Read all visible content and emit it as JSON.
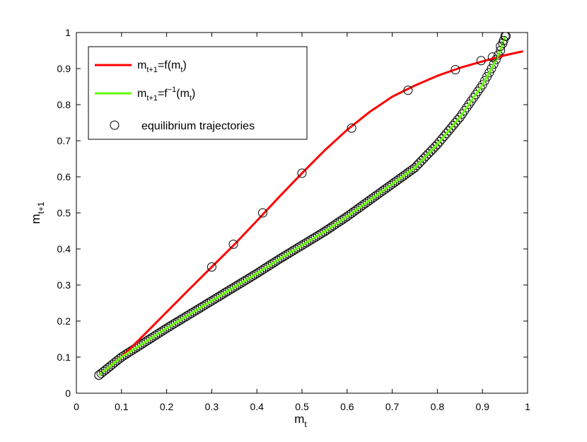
{
  "chart_data": {
    "type": "line",
    "title": "",
    "xlabel": {
      "base": "m",
      "sub": "t"
    },
    "ylabel": {
      "base": "m",
      "sub": "t+1"
    },
    "xlim": [
      0,
      1
    ],
    "ylim": [
      0,
      1
    ],
    "xticks": [
      0,
      0.1,
      0.2,
      0.3,
      0.4,
      0.5,
      0.6,
      0.7,
      0.8,
      0.9,
      1
    ],
    "yticks": [
      0,
      0.1,
      0.2,
      0.3,
      0.4,
      0.5,
      0.6,
      0.7,
      0.8,
      0.9,
      1
    ],
    "xtick_labels": [
      "0",
      "0.1",
      "0.2",
      "0.3",
      "0.4",
      "0.5",
      "0.6",
      "0.7",
      "0.8",
      "0.9",
      "1"
    ],
    "ytick_labels": [
      "0",
      "0.1",
      "0.2",
      "0.3",
      "0.4",
      "0.5",
      "0.6",
      "0.7",
      "0.8",
      "0.9",
      "1"
    ],
    "grid": false,
    "legend_position": "top-left",
    "legend": [
      {
        "key": "f",
        "text_base": "m",
        "text_sub": "t+1",
        "text_mid": "=f(m",
        "text_sub2": "t",
        "text_end": ")"
      },
      {
        "key": "finv",
        "text_base": "m",
        "text_sub": "t+1",
        "text_mid": "=f",
        "text_sup": "−1",
        "text_mid2": "(m",
        "text_sub2": "t",
        "text_end": ")"
      },
      {
        "key": "eq",
        "text": "equilibrium trajectories"
      }
    ],
    "series": [
      {
        "key": "f",
        "color": "#ff0000",
        "style": "line",
        "x": [
          0.05,
          0.1,
          0.15,
          0.2,
          0.25,
          0.3,
          0.35,
          0.4,
          0.45,
          0.5,
          0.55,
          0.6,
          0.65,
          0.7,
          0.75,
          0.8,
          0.85,
          0.9,
          0.95,
          0.99
        ],
        "y": [
          0.05,
          0.1,
          0.162,
          0.225,
          0.288,
          0.35,
          0.412,
          0.478,
          0.545,
          0.61,
          0.673,
          0.73,
          0.78,
          0.822,
          0.853,
          0.88,
          0.902,
          0.92,
          0.937,
          0.948
        ]
      },
      {
        "key": "finv",
        "color": "#66ff00",
        "style": "line",
        "x": [
          0.05,
          0.1,
          0.15,
          0.2,
          0.25,
          0.3,
          0.35,
          0.4,
          0.45,
          0.5,
          0.55,
          0.6,
          0.65,
          0.7,
          0.75,
          0.8,
          0.85,
          0.9,
          0.92,
          0.94,
          0.95
        ],
        "y": [
          0.05,
          0.1,
          0.14,
          0.18,
          0.218,
          0.256,
          0.294,
          0.332,
          0.372,
          0.41,
          0.448,
          0.49,
          0.535,
          0.58,
          0.625,
          0.69,
          0.765,
          0.855,
          0.9,
          0.95,
          0.99
        ]
      },
      {
        "key": "eq_red",
        "color": "#000000",
        "style": "markers",
        "x": [
          0.05,
          0.3,
          0.348,
          0.413,
          0.5,
          0.61,
          0.735,
          0.84,
          0.897,
          0.922,
          0.94,
          0.947,
          0.952
        ],
        "y": [
          0.05,
          0.35,
          0.413,
          0.5,
          0.61,
          0.735,
          0.84,
          0.897,
          0.922,
          0.932,
          0.962,
          0.978,
          0.99
        ]
      }
    ]
  }
}
